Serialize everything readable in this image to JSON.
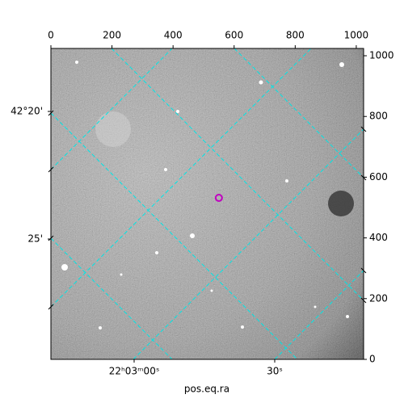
{
  "chart_data": {
    "type": "image",
    "xlabel": "pos.eq.ra",
    "xlim": [
      0,
      1024
    ],
    "xticks": [
      0,
      200,
      400,
      600,
      800,
      1000
    ],
    "ylim": [
      0,
      1024
    ],
    "yticks": [
      0,
      200,
      400,
      600,
      800,
      1000
    ],
    "dec_labels": [
      "42°20'",
      "25'"
    ],
    "ra_labels": [
      "22ʰ03ᵐ00ˢ",
      "30ˢ"
    ],
    "grid_color": "#00e5e5",
    "marker": {
      "x": 550,
      "y": 532,
      "color": "#c000c0"
    }
  }
}
